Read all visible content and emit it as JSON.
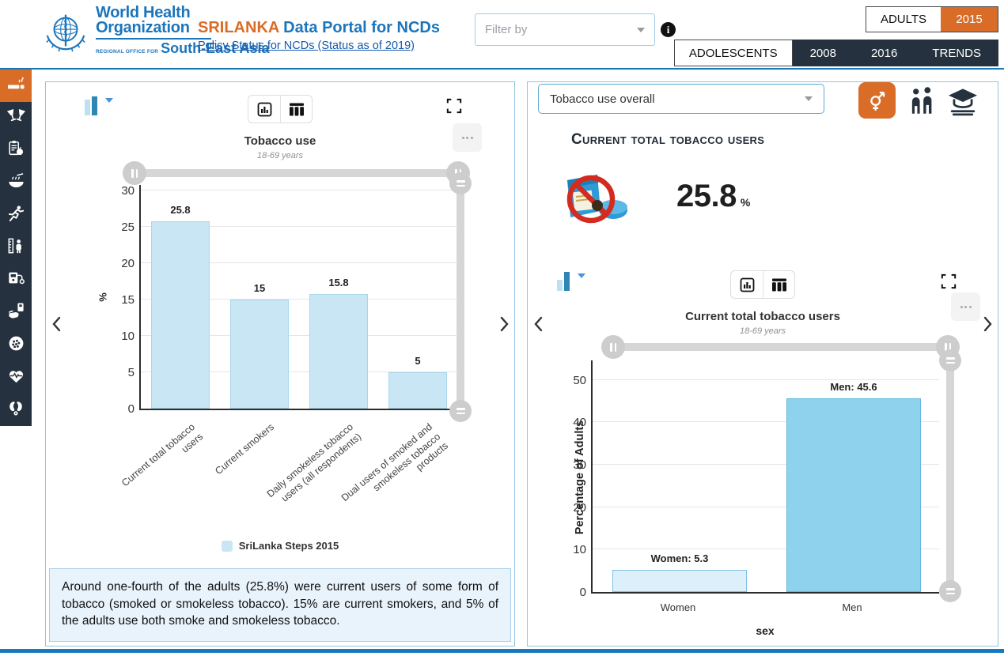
{
  "header": {
    "logo": {
      "org_line1": "World Health",
      "org_line2": "Organization",
      "region_prefix": "REGIONAL OFFICE FOR",
      "region_name": "South-East Asia"
    },
    "title": {
      "country": "SRILANKA",
      "rest": " Data Portal for NCDs"
    },
    "policy_link": "Policy Status for NCDs (Status as of 2019)",
    "filter_placeholder": "Filter by",
    "info_glyph": "i",
    "age_tabs": [
      {
        "label": "ADULTS",
        "active": false
      },
      {
        "label": "2015",
        "active": true
      }
    ],
    "nav_tabs": [
      {
        "label": "ADOLESCENTS",
        "active": false
      },
      {
        "label": "2008",
        "active": false
      },
      {
        "label": "2016",
        "active": false
      },
      {
        "label": "TRENDS",
        "active": false
      }
    ]
  },
  "sidebar": {
    "items": [
      {
        "icon": "cigarette-icon",
        "active": true
      },
      {
        "icon": "alcohol-glasses-icon",
        "active": false
      },
      {
        "icon": "diet-clipboard-icon",
        "active": false
      },
      {
        "icon": "salt-bowl-icon",
        "active": false
      },
      {
        "icon": "physical-activity-icon",
        "active": false
      },
      {
        "icon": "body-measure-icon",
        "active": false
      },
      {
        "icon": "blood-pressure-icon",
        "active": false
      },
      {
        "icon": "blood-glucose-icon",
        "active": false
      },
      {
        "icon": "cells-icon",
        "active": false
      },
      {
        "icon": "heart-pulse-icon",
        "active": false
      },
      {
        "icon": "kidneys-icon",
        "active": false
      }
    ]
  },
  "left_panel": {
    "description": "Around one-fourth of the adults (25.8%) were current users of some form of tobacco (smoked or smokeless tobacco). 15% are current smokers, and 5% of the adults use both smoke and smokeless tobacco."
  },
  "right_panel": {
    "indicator_dropdown_value": "Tobacco use overall",
    "section_title": "Current total tobacco users",
    "stat_value": "25.8",
    "stat_unit": "%"
  },
  "chart_data": [
    {
      "id": "tobacco-use-by-indicator",
      "type": "bar",
      "title": "Tobacco use",
      "subtitle": "18-69 years",
      "xlabel": "",
      "ylabel": "%",
      "ylim": [
        0,
        31
      ],
      "yticks": [
        0,
        5,
        10,
        15,
        20,
        25,
        30
      ],
      "grid": true,
      "legend_position": "bottom",
      "categories": [
        "Current total tobacco users",
        "Current smokers",
        "Daily smokeless tobacco users (all respondents)",
        "Dual users of smoked and smokeless tobacco products"
      ],
      "values": [
        25.8,
        15,
        15.8,
        5
      ],
      "value_labels": [
        "25.8",
        "15",
        "15.8",
        "5"
      ],
      "bar_color": "#c9e6f5",
      "bar_border": "#a9d6ec",
      "legend": [
        {
          "label": "SriLanka Steps 2015",
          "color": "#c9e6f5"
        }
      ]
    },
    {
      "id": "tobacco-use-by-sex",
      "type": "bar",
      "title": "Current total tobacco users",
      "subtitle": "18-69 years",
      "xlabel": "sex",
      "ylabel": "Percentage of Adults",
      "ylim": [
        0,
        55
      ],
      "yticks": [
        0,
        10,
        20,
        30,
        40,
        50
      ],
      "grid": true,
      "categories": [
        "Women",
        "Men"
      ],
      "values": [
        5.3,
        45.6
      ],
      "value_labels": [
        "Women: 5.3",
        "Men: 45.6"
      ],
      "bar_colors": [
        "#ddeffa",
        "#8fd2ee"
      ],
      "bar_borders": [
        "#7fc2e4",
        "#63b8dc"
      ]
    }
  ],
  "ui": {
    "colors": {
      "accent_orange": "#d96c27",
      "brand_blue": "#1b75bb",
      "navy": "#25313e",
      "header_rule_blue": "#1878bc"
    }
  }
}
